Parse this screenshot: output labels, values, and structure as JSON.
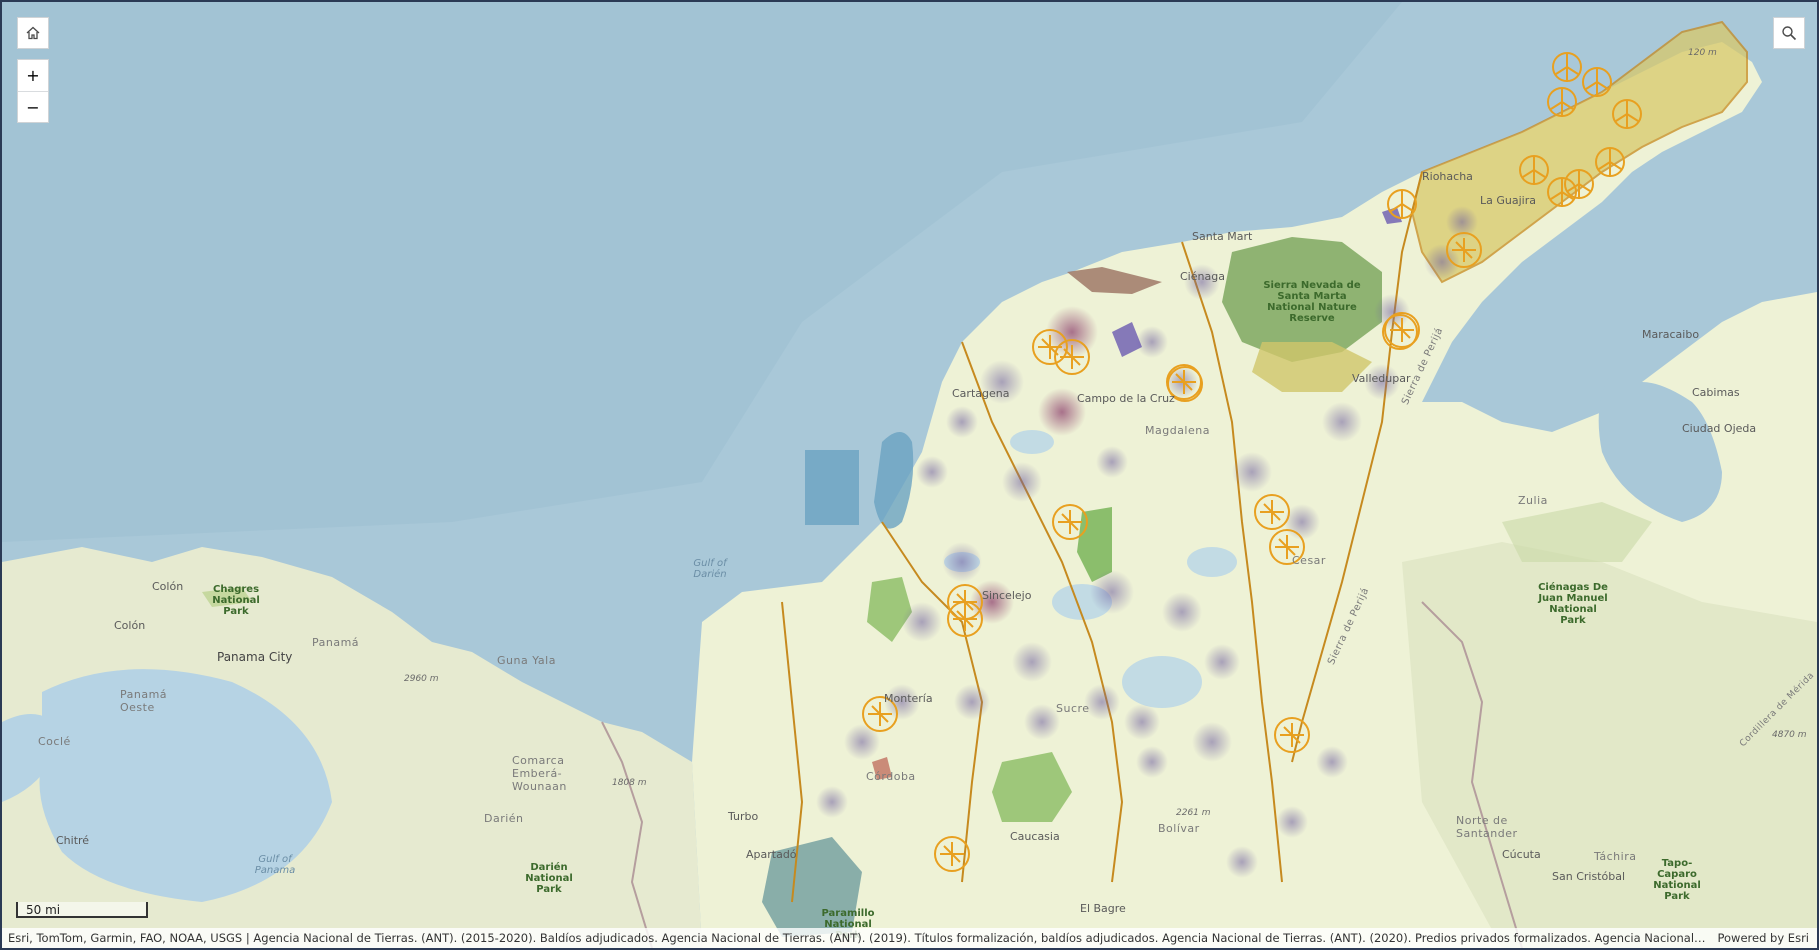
{
  "controls": {
    "home_icon": "home-icon",
    "zoom_in_label": "+",
    "zoom_out_label": "−",
    "search_icon": "search-icon"
  },
  "scale": {
    "label": "50 mi"
  },
  "attribution": {
    "text": "Esri, TomTom, Garmin, FAO, NOAA, USGS | Agencia Nacional de Tierras. (ANT). (2015-2020). Baldíos adjudicados. Agencia Nacional de Tierras. (ANT). (2019). Títulos formalización, baldíos adjudicados. Agencia Nacional de Tierras. (ANT). (2020). Predios privados formalizados. Agencia Nacional de Tierras. (ANT). (20...",
    "powered": "Powered by Esri"
  },
  "labels": {
    "riohacha": "Riohacha",
    "la_guajira": "La Guajira",
    "santa_marta": "Santa Mart",
    "cienaga": "Ciénaga",
    "sierra_nevada": "Sierra Nevada de Santa Marta National Nature Reserve",
    "valledupar": "Valledupar",
    "maracaibo": "Maracaibo",
    "cabimas": "Cabimas",
    "ciudad_ojeda": "Ciudad Ojeda",
    "zulia": "Zulia",
    "cartagena": "Cartagena",
    "campo_cruz": "Campo de la Cruz",
    "magdalena": "Magdalena",
    "cesar": "Cesar",
    "gulf_darien": "Gulf of Darién",
    "colon": "Colón",
    "chagres": "Chagres National Park",
    "colon2": "Colón",
    "panama": "Panamá",
    "panama_city": "Panama City",
    "guna_yala": "Guna Yala",
    "panama_oeste": "Panamá Oeste",
    "cocle": "Coclé",
    "comarca": "Comarca Emberá-Wounaan",
    "darien": "Darién",
    "darien_park": "Darién National Park",
    "gulf_panama": "Gulf of Panama",
    "chitre": "Chitré",
    "turbo": "Turbo",
    "apartado": "Apartadó",
    "monteria": "Montería",
    "cordoba": "Córdoba",
    "sincelejo": "Sincelejo",
    "sucre": "Sucre",
    "caucasia": "Caucasia",
    "bolivar": "Bolívar",
    "el_bagre": "El Bagre",
    "paramillo": "Paramillo National Park",
    "norte_santander": "Norte de Santander",
    "cucuta": "Cúcuta",
    "tachira": "Táchira",
    "san_cristobal": "San Cristóbal",
    "tapo_caparo": "Tapo-Caparo National Park",
    "cienagas_jm": "Ciénagas De Juan Manuel National Park",
    "serrania_perija": "Sierra de Perijá",
    "sierra_perija2": "Sierra de Perijá",
    "elev_2960": "2960 m",
    "elev_1808": "1808 m",
    "elev_2261": "2261 m",
    "elev_4870": "4870 m",
    "elev_120": "120 m",
    "cordillera": "Cordillera de Mérida"
  },
  "colors": {
    "sea": "#a9c8d8",
    "land": "#eef2d6",
    "border_dept": "#c68a1f",
    "park": "#8fbf6a",
    "guajira_fill": "#d8c96a",
    "heat_purple": "#7a6aa8",
    "wind_icon": "#e8a020"
  }
}
